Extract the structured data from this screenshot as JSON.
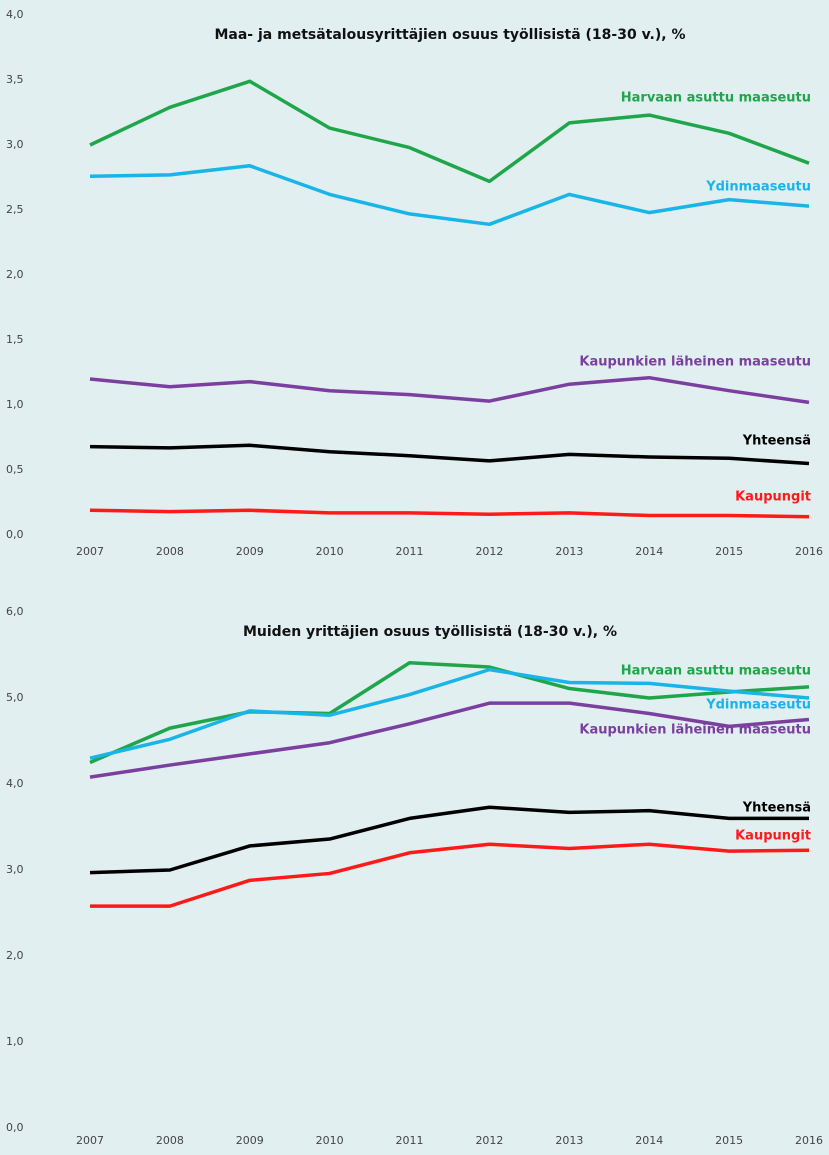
{
  "chart_data": [
    {
      "type": "line",
      "title": "Maa- ja metsätalousyrittäjien osuus työllisistä (18-30 v.), %",
      "categories": [
        "2007",
        "2008",
        "2009",
        "2010",
        "2011",
        "2012",
        "2013",
        "2014",
        "2015",
        "2016"
      ],
      "ylim": [
        0,
        4
      ],
      "yticks": [
        {
          "value": 0,
          "label": "0,0"
        },
        {
          "value": 0.5,
          "label": "0,5"
        },
        {
          "value": 1,
          "label": "1,0"
        },
        {
          "value": 1.5,
          "label": "1,5"
        },
        {
          "value": 2,
          "label": "2,0"
        },
        {
          "value": 2.5,
          "label": "2,5"
        },
        {
          "value": 3,
          "label": "3,0"
        },
        {
          "value": 3.5,
          "label": "3,5"
        },
        {
          "value": 4,
          "label": "4,0"
        }
      ],
      "series": [
        {
          "name": "Harvaan asuttu maaseutu",
          "color": "#1fa64a",
          "values": [
            3.0,
            3.29,
            3.49,
            3.13,
            2.98,
            2.72,
            3.17,
            3.23,
            3.09,
            2.86
          ]
        },
        {
          "name": "Ydinmaaseutu",
          "color": "#19b4e8",
          "values": [
            2.76,
            2.77,
            2.84,
            2.62,
            2.47,
            2.39,
            2.62,
            2.48,
            2.58,
            2.53
          ]
        },
        {
          "name": "Kaupunkien läheinen maaseutu",
          "color": "#7b3fa0",
          "values": [
            1.2,
            1.14,
            1.18,
            1.11,
            1.08,
            1.03,
            1.16,
            1.21,
            1.11,
            1.02
          ]
        },
        {
          "name": "Yhteensä",
          "color": "#000000",
          "values": [
            0.68,
            0.67,
            0.69,
            0.64,
            0.61,
            0.57,
            0.62,
            0.6,
            0.59,
            0.55
          ]
        },
        {
          "name": "Kaupungit",
          "color": "#ff1a1a",
          "values": [
            0.19,
            0.18,
            0.19,
            0.17,
            0.17,
            0.16,
            0.17,
            0.15,
            0.15,
            0.14
          ]
        }
      ]
    },
    {
      "type": "line",
      "title": "Muiden yrittäjien osuus työllisistä (18-30 v.), %",
      "categories": [
        "2007",
        "2008",
        "2009",
        "2010",
        "2011",
        "2012",
        "2013",
        "2014",
        "2015",
        "2016"
      ],
      "ylim": [
        0,
        6
      ],
      "yticks": [
        {
          "value": 0,
          "label": "0,0"
        },
        {
          "value": 1,
          "label": "1,0"
        },
        {
          "value": 2,
          "label": "2,0"
        },
        {
          "value": 3,
          "label": "3,0"
        },
        {
          "value": 4,
          "label": "4,0"
        },
        {
          "value": 5,
          "label": "5,0"
        },
        {
          "value": 6,
          "label": "6,0"
        }
      ],
      "series": [
        {
          "name": "Harvaan asuttu maaseutu",
          "color": "#1fa64a",
          "values": [
            4.25,
            4.65,
            4.84,
            4.82,
            5.41,
            5.36,
            5.11,
            5.0,
            5.07,
            5.13
          ]
        },
        {
          "name": "Ydinmaaseutu",
          "color": "#19b4e8",
          "values": [
            4.3,
            4.52,
            4.85,
            4.8,
            5.04,
            5.33,
            5.18,
            5.17,
            5.08,
            5.0
          ]
        },
        {
          "name": "Kaupunkien läheinen maaseutu",
          "color": "#7b3fa0",
          "values": [
            4.08,
            4.22,
            4.35,
            4.48,
            4.7,
            4.94,
            4.94,
            4.82,
            4.67,
            4.75
          ]
        },
        {
          "name": "Yhteensä",
          "color": "#000000",
          "values": [
            2.97,
            3.0,
            3.28,
            3.36,
            3.6,
            3.73,
            3.67,
            3.69,
            3.6,
            3.6
          ]
        },
        {
          "name": "Kaupungit",
          "color": "#ff1a1a",
          "values": [
            2.58,
            2.58,
            2.88,
            2.96,
            3.2,
            3.3,
            3.25,
            3.3,
            3.22,
            3.23
          ]
        }
      ]
    }
  ]
}
